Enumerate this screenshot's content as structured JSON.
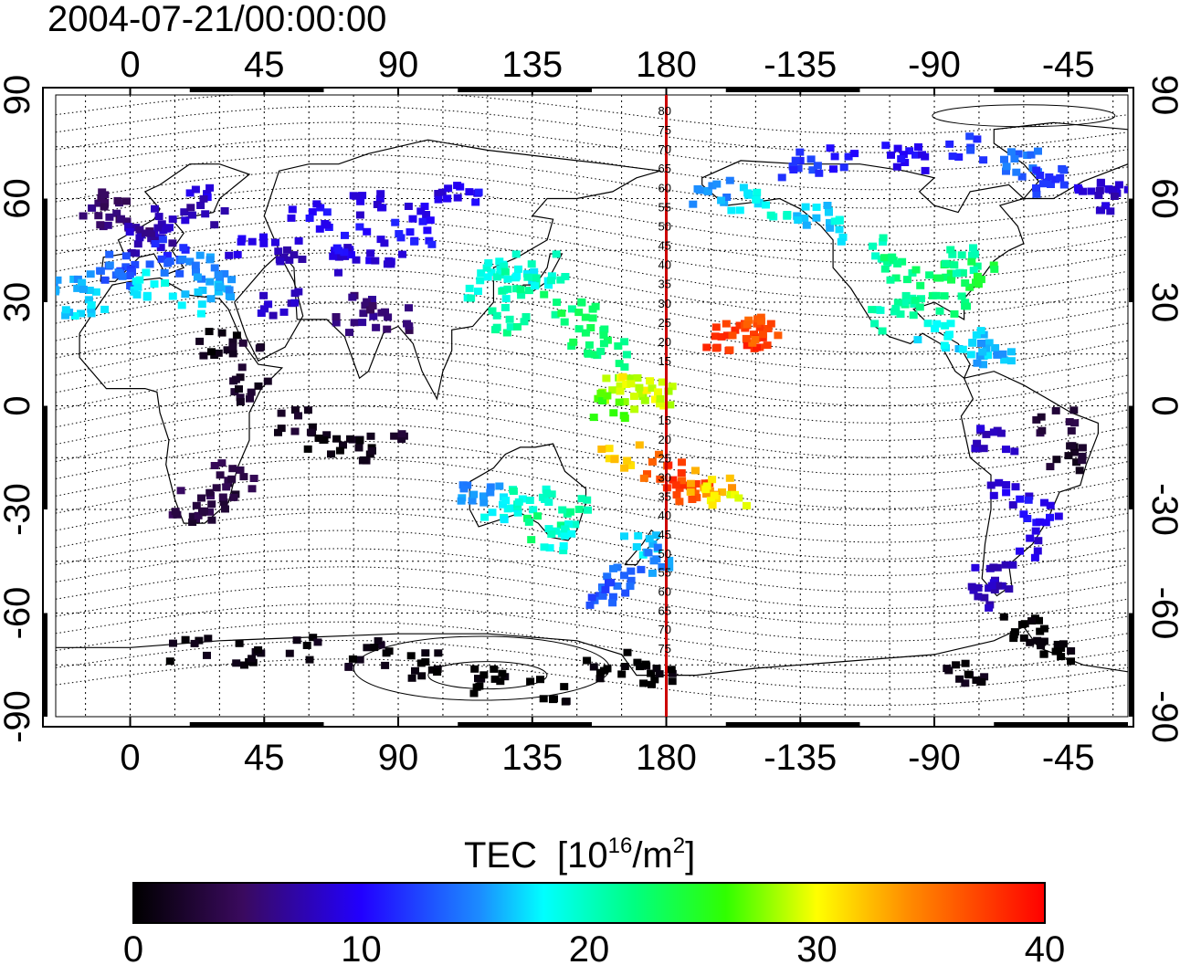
{
  "title": "2004-07-21/00:00:00",
  "colorbar": {
    "label": "TEC",
    "unit_base": "[10",
    "unit_exp": "16",
    "unit_mid": "/m",
    "unit_exp2": "2",
    "unit_end": "]",
    "ticks": [
      "0",
      "10",
      "20",
      "30",
      "40"
    ],
    "range": [
      0,
      40
    ]
  },
  "map": {
    "lon_range": [
      -25,
      335
    ],
    "lat_range": [
      -90,
      90
    ],
    "lon_ticks": [
      "0",
      "45",
      "90",
      "135",
      "180",
      "-135",
      "-90",
      "-45"
    ],
    "lat_ticks_left": [
      "90",
      "60",
      "30",
      "0",
      "-30",
      "-60",
      "-90"
    ],
    "lat_ticks_right": [
      "90",
      "60",
      "30",
      "0",
      "-30",
      "-60",
      "-90"
    ],
    "reference_meridian": 180,
    "reference_color": "#cc0000",
    "contour_labels_north": [
      "80",
      "75",
      "70",
      "65",
      "60",
      "55",
      "50",
      "45",
      "40",
      "35",
      "30",
      "25",
      "20",
      "15"
    ],
    "contour_labels_south": [
      "15",
      "20",
      "25",
      "30",
      "35",
      "40",
      "45",
      "50",
      "55",
      "60",
      "65",
      "70",
      "75"
    ]
  },
  "chart_data": {
    "type": "heatmap",
    "description_fields": "lon, lat, tec",
    "points": [
      [
        -10,
        55,
        6
      ],
      [
        -5,
        58,
        5
      ],
      [
        0,
        52,
        5
      ],
      [
        5,
        48,
        8
      ],
      [
        10,
        50,
        7
      ],
      [
        15,
        55,
        8
      ],
      [
        20,
        60,
        9
      ],
      [
        25,
        56,
        7
      ],
      [
        12,
        45,
        12
      ],
      [
        18,
        42,
        14
      ],
      [
        25,
        40,
        15
      ],
      [
        -5,
        40,
        13
      ],
      [
        0,
        38,
        14
      ],
      [
        8,
        35,
        18
      ],
      [
        30,
        35,
        16
      ],
      [
        20,
        30,
        17
      ],
      [
        -15,
        30,
        17
      ],
      [
        -20,
        35,
        16
      ],
      [
        40,
        45,
        9
      ],
      [
        55,
        45,
        8
      ],
      [
        70,
        42,
        9
      ],
      [
        75,
        48,
        10
      ],
      [
        85,
        45,
        9
      ],
      [
        60,
        55,
        10
      ],
      [
        80,
        58,
        9
      ],
      [
        100,
        58,
        9
      ],
      [
        110,
        62,
        10
      ],
      [
        95,
        50,
        11
      ],
      [
        50,
        30,
        8
      ],
      [
        75,
        28,
        6
      ],
      [
        80,
        25,
        5
      ],
      [
        90,
        25,
        5
      ],
      [
        30,
        18,
        1
      ],
      [
        38,
        15,
        2
      ],
      [
        40,
        5,
        2
      ],
      [
        55,
        -5,
        2
      ],
      [
        65,
        -10,
        1
      ],
      [
        75,
        -12,
        1
      ],
      [
        85,
        -10,
        2
      ],
      [
        30,
        -25,
        3
      ],
      [
        25,
        -30,
        3
      ],
      [
        20,
        -28,
        4
      ],
      [
        35,
        -20,
        4
      ],
      [
        120,
        35,
        19
      ],
      [
        125,
        40,
        19
      ],
      [
        130,
        35,
        21
      ],
      [
        135,
        38,
        18
      ],
      [
        140,
        40,
        20
      ],
      [
        128,
        25,
        21
      ],
      [
        145,
        30,
        22
      ],
      [
        150,
        25,
        23
      ],
      [
        155,
        20,
        23
      ],
      [
        160,
        15,
        22
      ],
      [
        165,
        5,
        28
      ],
      [
        170,
        5,
        30
      ],
      [
        175,
        3,
        29
      ],
      [
        160,
        0,
        26
      ],
      [
        165,
        -15,
        32
      ],
      [
        175,
        -18,
        36
      ],
      [
        185,
        -20,
        38
      ],
      [
        190,
        -25,
        37
      ],
      [
        195,
        -22,
        33
      ],
      [
        200,
        -25,
        30
      ],
      [
        118,
        -25,
        15
      ],
      [
        125,
        -30,
        18
      ],
      [
        135,
        -28,
        20
      ],
      [
        140,
        -35,
        22
      ],
      [
        145,
        -38,
        19
      ],
      [
        150,
        -30,
        21
      ],
      [
        170,
        -40,
        17
      ],
      [
        175,
        -45,
        15
      ],
      [
        165,
        -50,
        14
      ],
      [
        160,
        -55,
        13
      ],
      [
        200,
        20,
        38
      ],
      [
        205,
        22,
        37
      ],
      [
        210,
        20,
        38
      ],
      [
        212,
        22,
        36
      ],
      [
        195,
        62,
        15
      ],
      [
        205,
        60,
        17
      ],
      [
        215,
        58,
        19
      ],
      [
        230,
        55,
        17
      ],
      [
        240,
        50,
        18
      ],
      [
        250,
        45,
        20
      ],
      [
        260,
        40,
        22
      ],
      [
        270,
        38,
        23
      ],
      [
        280,
        42,
        21
      ],
      [
        285,
        38,
        24
      ],
      [
        275,
        30,
        22
      ],
      [
        260,
        30,
        21
      ],
      [
        255,
        25,
        20
      ],
      [
        270,
        20,
        18
      ],
      [
        285,
        18,
        17
      ],
      [
        290,
        15,
        16
      ],
      [
        225,
        70,
        12
      ],
      [
        240,
        72,
        11
      ],
      [
        260,
        72,
        10
      ],
      [
        280,
        75,
        12
      ],
      [
        300,
        70,
        14
      ],
      [
        310,
        65,
        12
      ],
      [
        325,
        60,
        9
      ],
      [
        330,
        62,
        8
      ],
      [
        290,
        -10,
        8
      ],
      [
        295,
        -25,
        9
      ],
      [
        305,
        -30,
        10
      ],
      [
        300,
        -40,
        9
      ],
      [
        290,
        -50,
        8
      ],
      [
        285,
        -55,
        8
      ],
      [
        310,
        -5,
        3
      ],
      [
        315,
        -15,
        2
      ],
      [
        20,
        -70,
        1
      ],
      [
        40,
        -72,
        1
      ],
      [
        60,
        -70,
        1
      ],
      [
        80,
        -72,
        1
      ],
      [
        100,
        -75,
        0
      ],
      [
        120,
        -80,
        0
      ],
      [
        140,
        -82,
        0
      ],
      [
        160,
        -75,
        0
      ],
      [
        175,
        -78,
        0
      ],
      [
        300,
        -65,
        0
      ],
      [
        310,
        -70,
        0
      ],
      [
        280,
        -78,
        1
      ]
    ]
  }
}
